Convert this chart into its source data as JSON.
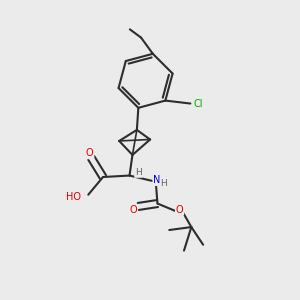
{
  "bg_color": "#ebebeb",
  "bond_color": "#2d2d2d",
  "atom_colors": {
    "O": "#e00000",
    "N": "#0000cc",
    "Cl": "#00aa00",
    "H": "#606060",
    "C": "#2d2d2d"
  },
  "figsize": [
    3.0,
    3.0
  ],
  "dpi": 100
}
